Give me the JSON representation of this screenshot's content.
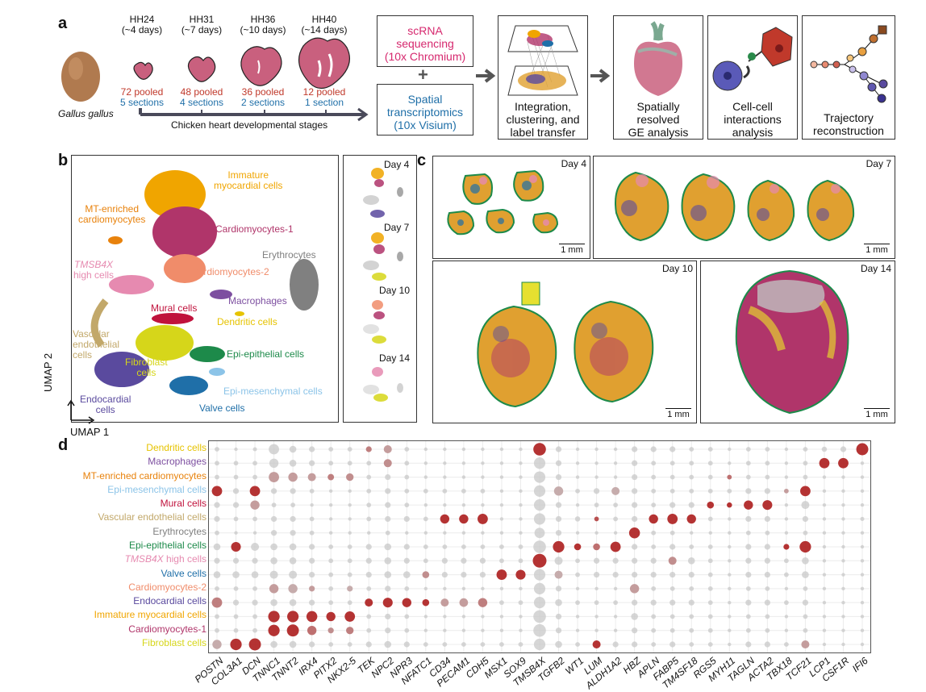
{
  "panel_labels": {
    "a": "a",
    "b": "b",
    "c": "c",
    "d": "d"
  },
  "panel_a": {
    "species": "Gallus gallus",
    "stages": [
      {
        "name": "HH24",
        "age": "(~4 days)",
        "pooled": "72 pooled",
        "sections": "5 sections"
      },
      {
        "name": "HH31",
        "age": "(~7 days)",
        "pooled": "48 pooled",
        "sections": "4 sections"
      },
      {
        "name": "HH36",
        "age": "(~10 days)",
        "pooled": "36 pooled",
        "sections": "2 sections"
      },
      {
        "name": "HH40",
        "age": "(~14 days)",
        "pooled": "12 pooled",
        "sections": "1 section"
      }
    ],
    "timeline_label": "Chicken heart developmental stages",
    "scrna": {
      "line1": "scRNA",
      "line2": "sequencing",
      "line3": "(10x Chromium)"
    },
    "plus": "+",
    "spatial": {
      "line1": "Spatial",
      "line2": "transcriptomics",
      "line3": "(10x Visium)"
    },
    "integration": {
      "line1": "Integration,",
      "line2": "clustering, and",
      "line3": "label transfer"
    },
    "ge": {
      "line1": "Spatially",
      "line2": "resolved",
      "line3": "GE analysis"
    },
    "cellcell": {
      "line1": "Cell-cell",
      "line2": "interactions",
      "line3": "analysis"
    },
    "trajectory": {
      "line1": "Trajectory",
      "line2": "reconstruction"
    }
  },
  "panel_b": {
    "axis_x": "UMAP 1",
    "axis_y": "UMAP 2",
    "clusters": {
      "immature": {
        "l1": "Immature",
        "l2": "myocardial cells",
        "color": "#f0a500"
      },
      "mt": {
        "l1": "MT-enriched",
        "l2": "cardiomyocytes",
        "color": "#e8820c"
      },
      "cm1": {
        "l1": "Cardiomyocytes-1",
        "color": "#b0356a"
      },
      "ery": {
        "l1": "Erythrocytes",
        "color": "#808080"
      },
      "tmsb": {
        "l1": "TMSB4X",
        "l2": "high cells",
        "color": "#e68ab0"
      },
      "cm2": {
        "l1": "Cardiomyocytes-2",
        "color": "#f08c6a"
      },
      "macro": {
        "l1": "Macrophages",
        "color": "#7d4fa0"
      },
      "mural": {
        "l1": "Mural cells",
        "color": "#c0123c"
      },
      "dend": {
        "l1": "Dendritic cells",
        "color": "#e6c300"
      },
      "vasc": {
        "l1": "Vascular",
        "l2": "endothelial",
        "l3": "cells",
        "color": "#c2a86a"
      },
      "fib": {
        "l1": "Fibroblast",
        "l2": "cells",
        "color": "#d6d61a"
      },
      "epiep": {
        "l1": "Epi-epithelial cells",
        "color": "#1d8a4a"
      },
      "epimes": {
        "l1": "Epi-mesenchymal cells",
        "color": "#8cc4e8"
      },
      "endo": {
        "l1": "Endocardial",
        "l2": "cells",
        "color": "#5a4a9e"
      },
      "valve": {
        "l1": "Valve cells",
        "color": "#1f6fa8"
      }
    },
    "days": [
      "Day 4",
      "Day 7",
      "Day 10",
      "Day 14"
    ]
  },
  "panel_c": {
    "days": [
      "Day 4",
      "Day 7",
      "Day 10",
      "Day 14"
    ],
    "scale": "1 mm"
  },
  "chart_data": {
    "type": "dotplot",
    "title": "",
    "xlabel": "",
    "ylabel": "",
    "genes": [
      "POSTN",
      "COL3A1",
      "DCN",
      "TNNC1",
      "TNNT2",
      "IRX4",
      "PITX2",
      "NKX2-5",
      "TEK",
      "NPC2",
      "NPR3",
      "NFATC1",
      "CD34",
      "PECAM1",
      "CDH5",
      "MSX1",
      "SOX9",
      "TMSB4X",
      "TGFB2",
      "WT1",
      "LUM",
      "ALDH1A2",
      "HBZ",
      "APLN",
      "FABP5",
      "TM4SF18",
      "RGS5",
      "MYH11",
      "TAGLN",
      "ACTA2",
      "TBX18",
      "TCF21",
      "LCP1",
      "CSF1R",
      "IFI6"
    ],
    "cell_types": [
      {
        "name": "Dendritic cells",
        "color": "#e6c300"
      },
      {
        "name": "Macrophages",
        "color": "#7d4fa0"
      },
      {
        "name": "MT-enriched cardiomyocytes",
        "color": "#e8820c"
      },
      {
        "name": "Epi-mesenchymal cells",
        "color": "#8cc4e8"
      },
      {
        "name": "Mural cells",
        "color": "#c0123c"
      },
      {
        "name": "Vascular endothelial cells",
        "color": "#c2a86a"
      },
      {
        "name": "Erythrocytes",
        "color": "#808080"
      },
      {
        "name": "Epi-epithelial cells",
        "color": "#1d8a4a"
      },
      {
        "name": "TMSB4X high cells",
        "color": "#e68ab0"
      },
      {
        "name": "Valve cells",
        "color": "#1f6fa8"
      },
      {
        "name": "Cardiomyocytes-2",
        "color": "#f08c6a"
      },
      {
        "name": "Endocardial cells",
        "color": "#5a4a9e"
      },
      {
        "name": "Immature myocardial cells",
        "color": "#f0a500"
      },
      {
        "name": "Cardiomyocytes-1",
        "color": "#b0356a"
      },
      {
        "name": "Fibroblast cells",
        "color": "#d6d61a"
      }
    ],
    "size_scale": "fraction of cells expressing (0-1)",
    "color_scale": "scaled average expression (0-1, grey to red)",
    "dots": [
      [
        0.2,
        0.1,
        0.15,
        0.7,
        0.4,
        0.3,
        0.2,
        0.2,
        0.3,
        0.5,
        0.2,
        0.1,
        0.1,
        0.1,
        0.1,
        0.1,
        0.1,
        0.9,
        0.3,
        0.1,
        0.1,
        0.1,
        0.3,
        0.3,
        0.3,
        0.2,
        0.2,
        0.1,
        0.2,
        0.2,
        0.1,
        0.2,
        0.25,
        0.3,
        0.85
      ],
      [
        0.2,
        0.2,
        0.2,
        0.6,
        0.4,
        0.3,
        0.2,
        0.2,
        0.2,
        0.5,
        0.2,
        0.1,
        0.1,
        0.1,
        0.1,
        0.1,
        0.1,
        0.8,
        0.3,
        0.1,
        0.1,
        0.1,
        0.3,
        0.2,
        0.2,
        0.2,
        0.2,
        0.1,
        0.2,
        0.2,
        0.1,
        0.2,
        0.7,
        0.7,
        0.1
      ],
      [
        0.2,
        0.2,
        0.2,
        0.7,
        0.6,
        0.5,
        0.35,
        0.45,
        0.2,
        0.3,
        0.2,
        0.1,
        0.1,
        0.1,
        0.1,
        0.1,
        0.1,
        0.8,
        0.3,
        0.1,
        0.1,
        0.1,
        0.3,
        0.2,
        0.2,
        0.2,
        0.2,
        0.2,
        0.2,
        0.2,
        0.1,
        0.2,
        0.1,
        0.1,
        0.1
      ],
      [
        0.7,
        0.3,
        0.7,
        0.3,
        0.3,
        0.2,
        0.1,
        0.1,
        0.2,
        0.3,
        0.2,
        0.2,
        0.2,
        0.2,
        0.2,
        0.1,
        0.1,
        0.8,
        0.6,
        0.2,
        0.3,
        0.5,
        0.3,
        0.2,
        0.2,
        0.2,
        0.2,
        0.2,
        0.3,
        0.3,
        0.2,
        0.7,
        0.1,
        0.1,
        0.1
      ],
      [
        0.3,
        0.3,
        0.6,
        0.2,
        0.2,
        0.1,
        0.1,
        0.1,
        0.2,
        0.3,
        0.2,
        0.1,
        0.1,
        0.1,
        0.1,
        0.1,
        0.1,
        0.8,
        0.3,
        0.1,
        0.2,
        0.2,
        0.3,
        0.2,
        0.3,
        0.3,
        0.4,
        0.25,
        0.6,
        0.65,
        0.1,
        0.5,
        0.1,
        0.1,
        0.1
      ],
      [
        0.3,
        0.2,
        0.2,
        0.3,
        0.3,
        0.2,
        0.1,
        0.1,
        0.2,
        0.3,
        0.3,
        0.2,
        0.6,
        0.6,
        0.7,
        0.1,
        0.1,
        0.8,
        0.3,
        0.25,
        0.2,
        0.2,
        0.3,
        0.6,
        0.7,
        0.6,
        0.2,
        0.1,
        0.3,
        0.3,
        0.1,
        0.3,
        0.1,
        0.1,
        0.15
      ],
      [
        0.2,
        0.1,
        0.1,
        0.3,
        0.3,
        0.2,
        0.1,
        0.1,
        0.1,
        0.2,
        0.1,
        0.1,
        0.1,
        0.1,
        0.1,
        0.1,
        0.1,
        0.7,
        0.3,
        0.1,
        0.1,
        0.1,
        0.75,
        0.2,
        0.2,
        0.1,
        0.1,
        0.1,
        0.2,
        0.2,
        0.1,
        0.2,
        0.1,
        0.1,
        0.1
      ],
      [
        0.4,
        0.65,
        0.5,
        0.4,
        0.4,
        0.3,
        0.2,
        0.2,
        0.3,
        0.4,
        0.3,
        0.2,
        0.2,
        0.2,
        0.2,
        0.2,
        0.2,
        0.9,
        0.8,
        0.4,
        0.4,
        0.7,
        0.3,
        0.2,
        0.3,
        0.2,
        0.2,
        0.1,
        0.3,
        0.3,
        0.3,
        0.8,
        0.1,
        0.1,
        0.1
      ],
      [
        0.3,
        0.3,
        0.3,
        0.4,
        0.4,
        0.3,
        0.2,
        0.2,
        0.3,
        0.4,
        0.3,
        0.2,
        0.3,
        0.3,
        0.3,
        0.2,
        0.2,
        1.0,
        0.5,
        0.2,
        0.3,
        0.3,
        0.3,
        0.3,
        0.5,
        0.4,
        0.2,
        0.1,
        0.3,
        0.3,
        0.2,
        0.4,
        0.1,
        0.1,
        0.1
      ],
      [
        0.4,
        0.4,
        0.4,
        0.5,
        0.5,
        0.3,
        0.2,
        0.2,
        0.3,
        0.4,
        0.4,
        0.4,
        0.3,
        0.3,
        0.3,
        0.7,
        0.65,
        0.8,
        0.5,
        0.2,
        0.3,
        0.3,
        0.3,
        0.3,
        0.3,
        0.3,
        0.2,
        0.1,
        0.3,
        0.3,
        0.2,
        0.4,
        0.1,
        0.1,
        0.1
      ],
      [
        0.2,
        0.2,
        0.2,
        0.6,
        0.6,
        0.3,
        0.2,
        0.3,
        0.2,
        0.3,
        0.2,
        0.1,
        0.1,
        0.1,
        0.1,
        0.1,
        0.1,
        0.8,
        0.3,
        0.1,
        0.1,
        0.1,
        0.6,
        0.2,
        0.2,
        0.2,
        0.2,
        0.1,
        0.2,
        0.2,
        0.1,
        0.2,
        0.1,
        0.1,
        0.1
      ],
      [
        0.7,
        0.3,
        0.3,
        0.4,
        0.4,
        0.3,
        0.2,
        0.2,
        0.5,
        0.65,
        0.6,
        0.4,
        0.5,
        0.55,
        0.6,
        0.2,
        0.2,
        0.8,
        0.4,
        0.2,
        0.2,
        0.2,
        0.3,
        0.3,
        0.3,
        0.3,
        0.2,
        0.1,
        0.3,
        0.3,
        0.2,
        0.3,
        0.1,
        0.1,
        0.1
      ],
      [
        0.2,
        0.2,
        0.2,
        0.8,
        0.8,
        0.75,
        0.6,
        0.7,
        0.2,
        0.3,
        0.2,
        0.1,
        0.1,
        0.1,
        0.1,
        0.1,
        0.1,
        0.9,
        0.3,
        0.1,
        0.1,
        0.1,
        0.4,
        0.2,
        0.2,
        0.2,
        0.2,
        0.1,
        0.2,
        0.2,
        0.1,
        0.2,
        0.1,
        0.1,
        0.1
      ],
      [
        0.2,
        0.2,
        0.2,
        0.8,
        0.85,
        0.6,
        0.3,
        0.45,
        0.2,
        0.3,
        0.2,
        0.1,
        0.1,
        0.1,
        0.1,
        0.1,
        0.1,
        0.9,
        0.3,
        0.1,
        0.1,
        0.1,
        0.3,
        0.2,
        0.2,
        0.2,
        0.2,
        0.1,
        0.2,
        0.2,
        0.1,
        0.2,
        0.1,
        0.1,
        0.1
      ],
      [
        0.6,
        0.8,
        0.85,
        0.4,
        0.4,
        0.3,
        0.2,
        0.2,
        0.3,
        0.4,
        0.3,
        0.2,
        0.2,
        0.2,
        0.2,
        0.2,
        0.2,
        0.8,
        0.4,
        0.2,
        0.5,
        0.3,
        0.3,
        0.2,
        0.3,
        0.2,
        0.2,
        0.1,
        0.3,
        0.3,
        0.2,
        0.5,
        0.1,
        0.1,
        0.1
      ]
    ],
    "expr": [
      [
        0,
        0,
        0,
        0,
        0,
        0,
        0,
        0,
        0.5,
        0.3,
        0,
        0,
        0,
        0,
        0,
        0,
        0,
        1,
        0,
        0,
        0,
        0,
        0,
        0,
        0,
        0,
        0,
        0,
        0,
        0,
        0,
        0,
        0,
        0,
        1
      ],
      [
        0,
        0,
        0,
        0,
        0,
        0,
        0,
        0,
        0,
        0.4,
        0,
        0,
        0,
        0,
        0,
        0,
        0,
        0,
        0,
        0,
        0,
        0,
        0,
        0,
        0,
        0,
        0,
        0,
        0,
        0,
        0,
        0,
        1,
        1,
        0
      ],
      [
        0,
        0,
        0,
        0.3,
        0.3,
        0.3,
        0.5,
        0.4,
        0,
        0,
        0,
        0,
        0,
        0,
        0,
        0,
        0,
        0,
        0,
        0,
        0,
        0,
        0,
        0,
        0,
        0,
        0,
        0.6,
        0,
        0,
        0,
        0,
        0,
        0,
        0
      ],
      [
        1,
        0,
        1,
        0,
        0,
        0,
        0,
        0,
        0,
        0,
        0,
        0,
        0,
        0,
        0,
        0,
        0,
        0,
        0.2,
        0,
        0,
        0.2,
        0,
        0,
        0,
        0,
        0,
        0,
        0,
        0,
        0.3,
        1,
        0,
        0,
        0
      ],
      [
        0,
        0,
        0.3,
        0,
        0,
        0,
        0,
        0,
        0,
        0,
        0,
        0,
        0,
        0,
        0,
        0,
        0,
        0,
        0,
        0,
        0,
        0,
        0,
        0,
        0,
        0,
        1,
        1,
        1,
        1,
        0,
        0,
        0,
        0,
        0
      ],
      [
        0,
        0,
        0,
        0,
        0,
        0,
        0,
        0,
        0,
        0,
        0,
        0,
        1,
        1,
        1,
        0,
        0,
        0,
        0,
        0,
        0.8,
        0,
        0,
        1,
        1,
        1,
        0,
        0,
        0,
        0,
        0,
        0,
        0,
        0,
        0
      ],
      [
        0,
        0,
        0,
        0,
        0,
        0,
        0,
        0,
        0,
        0,
        0,
        0,
        0,
        0,
        0,
        0,
        0,
        0,
        0,
        0,
        0,
        0,
        1,
        0,
        0,
        0,
        0,
        0,
        0,
        0,
        0,
        0,
        0,
        0,
        0
      ],
      [
        0,
        1,
        0,
        0,
        0,
        0,
        0,
        0,
        0,
        0,
        0,
        0,
        0,
        0,
        0,
        0,
        0,
        0,
        1,
        1,
        0.6,
        1,
        0,
        0,
        0,
        0,
        0,
        0,
        0,
        0,
        1,
        1,
        0,
        0,
        0
      ],
      [
        0,
        0,
        0,
        0,
        0,
        0,
        0,
        0,
        0,
        0,
        0,
        0,
        0,
        0,
        0,
        0,
        0,
        1,
        0,
        0,
        0,
        0,
        0,
        0,
        0.4,
        0,
        0,
        0,
        0,
        0,
        0,
        0,
        0,
        0,
        0
      ],
      [
        0,
        0,
        0,
        0,
        0,
        0,
        0,
        0,
        0,
        0,
        0,
        0.4,
        0,
        0,
        0,
        1,
        1,
        0,
        0.2,
        0,
        0,
        0,
        0,
        0,
        0,
        0,
        0,
        0,
        0,
        0,
        0,
        0,
        0,
        0,
        0
      ],
      [
        0,
        0,
        0,
        0.3,
        0.2,
        0.3,
        0,
        0.2,
        0,
        0,
        0,
        0,
        0,
        0,
        0,
        0,
        0,
        0,
        0,
        0,
        0,
        0,
        0.3,
        0,
        0,
        0,
        0,
        0,
        0,
        0,
        0,
        0,
        0,
        0,
        0
      ],
      [
        0.5,
        0,
        0,
        0,
        0,
        0,
        0,
        0,
        1,
        1,
        1,
        1,
        0.3,
        0.3,
        0.5,
        0,
        0,
        0,
        0,
        0,
        0,
        0,
        0,
        0,
        0,
        0,
        0,
        0,
        0,
        0,
        0,
        0,
        0,
        0,
        0
      ],
      [
        0,
        0,
        0,
        1,
        1,
        1,
        1,
        1,
        0,
        0,
        0,
        0,
        0,
        0,
        0,
        0,
        0,
        0,
        0,
        0,
        0,
        0,
        0,
        0,
        0,
        0,
        0,
        0,
        0,
        0,
        0,
        0,
        0,
        0,
        0
      ],
      [
        0,
        0,
        0,
        1,
        1,
        0.6,
        0.4,
        0.5,
        0,
        0,
        0,
        0,
        0,
        0,
        0,
        0,
        0,
        0,
        0,
        0,
        0,
        0,
        0,
        0,
        0,
        0,
        0,
        0,
        0,
        0,
        0,
        0,
        0,
        0,
        0
      ],
      [
        0.2,
        1,
        1,
        0,
        0,
        0,
        0,
        0,
        0,
        0,
        0,
        0,
        0,
        0,
        0,
        0,
        0,
        0,
        0,
        0,
        1,
        0,
        0,
        0,
        0,
        0,
        0,
        0,
        0,
        0,
        0,
        0.3,
        0,
        0,
        0
      ]
    ]
  }
}
